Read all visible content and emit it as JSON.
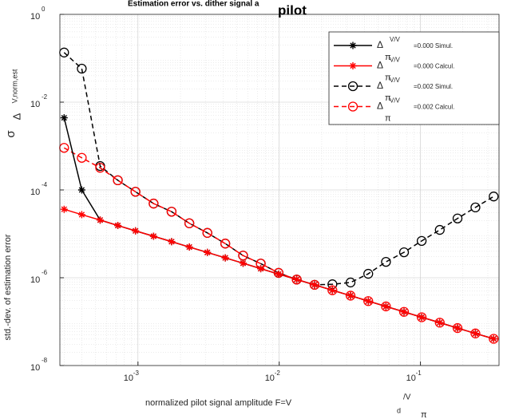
{
  "chart_data": {
    "type": "line",
    "title": "Estimation error vs. dither signal a",
    "title_overlay": "pilot",
    "y_label": "std.-dev. of estimation error",
    "y_label_symbol": [
      "σ",
      "Δ",
      "V,norm,est"
    ],
    "x_label": "normalized pilot signal amplitude F=V",
    "x_label_parts": [
      "d",
      "/V",
      "π"
    ],
    "legend_prefix": [
      "Δ",
      "V/V",
      "π"
    ],
    "log_x": true,
    "log_y": true,
    "grid": true,
    "legend_position": "upper right",
    "xlim": [
      0.00028,
      0.36
    ],
    "ylim": [
      1e-08,
      1
    ],
    "xticks": [
      {
        "value": 0.001,
        "label": "10",
        "exponent": "-3"
      },
      {
        "value": 0.01,
        "label": "10",
        "exponent": "-2"
      },
      {
        "value": 0.1,
        "label": "10",
        "exponent": "-1"
      }
    ],
    "yticks": [
      {
        "value": 1e-08,
        "label": "10",
        "exponent": "-8"
      },
      {
        "value": 1e-06,
        "label": "10",
        "exponent": "-6"
      },
      {
        "value": 0.0001,
        "label": "10",
        "exponent": "-4"
      },
      {
        "value": 0.01,
        "label": "10",
        "exponent": "-2"
      },
      {
        "value": 1,
        "label": "10",
        "exponent": "0"
      }
    ],
    "x": [
      0.0003,
      0.0004,
      0.00054,
      0.00072,
      0.00096,
      0.00129,
      0.00173,
      0.00231,
      0.0031,
      0.00415,
      0.00555,
      0.0074,
      0.0099,
      0.0133,
      0.0178,
      0.0238,
      0.032,
      0.0427,
      0.057,
      0.0765,
      0.102,
      0.137,
      0.183,
      0.245,
      0.33
    ],
    "series": [
      {
        "name": "=0.000 Simul.",
        "color": "#000000",
        "dash": false,
        "marker": "star",
        "values": [
          0.0044,
          0.0001,
          2.06e-05,
          1.55e-05,
          1.17e-05,
          8.81e-06,
          6.64e-06,
          5e-06,
          3.77e-06,
          2.84e-06,
          2.14e-06,
          1.61e-06,
          1.21e-06,
          9.14e-07,
          6.89e-07,
          5.19e-07,
          3.91e-07,
          2.94e-07,
          2.22e-07,
          1.67e-07,
          1.26e-07,
          9.48e-08,
          7.14e-08,
          5.38e-08,
          4.06e-08
        ]
      },
      {
        "name": "=0.000 Calcul.",
        "color": "#ff0000",
        "dash": false,
        "marker": "star",
        "values": [
          3.63e-05,
          2.74e-05,
          2.06e-05,
          1.55e-05,
          1.17e-05,
          8.81e-06,
          6.64e-06,
          5e-06,
          3.77e-06,
          2.84e-06,
          2.14e-06,
          1.61e-06,
          1.21e-06,
          9.14e-07,
          6.89e-07,
          5.19e-07,
          3.91e-07,
          2.94e-07,
          2.22e-07,
          1.67e-07,
          1.26e-07,
          9.48e-08,
          7.14e-08,
          5.38e-08,
          4.06e-08
        ]
      },
      {
        "name": "=0.002 Simul.",
        "color": "#000000",
        "dash": true,
        "marker": "circle",
        "values": [
          0.135,
          0.058,
          0.00035,
          0.000166,
          9.1e-05,
          4.9e-05,
          3.2e-05,
          1.74e-05,
          1.05e-05,
          6e-06,
          3.2e-06,
          2.1e-06,
          1.29e-06,
          9.1e-07,
          6.89e-07,
          7.1e-07,
          7.8e-07,
          1.23e-06,
          2.3e-06,
          3.8e-06,
          6.9e-06,
          1.23e-05,
          2.24e-05,
          4e-05,
          7.1e-05
        ]
      },
      {
        "name": "=0.002 Calcul.",
        "color": "#ff0000",
        "dash": true,
        "marker": "circle",
        "values": [
          0.00091,
          0.00054,
          0.00032,
          0.000166,
          9.1e-05,
          4.9e-05,
          3.2e-05,
          1.74e-05,
          1.05e-05,
          6e-06,
          3.2e-06,
          2.1e-06,
          1.29e-06,
          9.1e-07,
          6.89e-07,
          5.19e-07,
          3.91e-07,
          2.94e-07,
          2.22e-07,
          1.67e-07,
          1.26e-07,
          9.48e-08,
          7.14e-08,
          5.38e-08,
          4.06e-08
        ]
      }
    ]
  }
}
